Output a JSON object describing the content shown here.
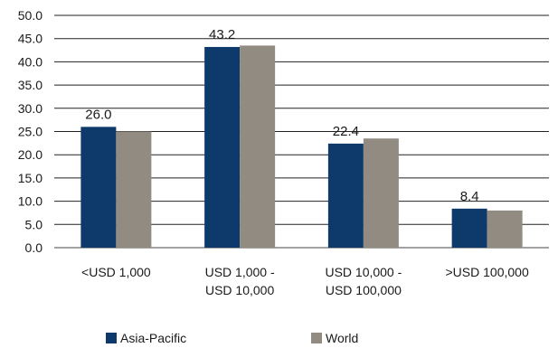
{
  "chart_data": {
    "type": "bar",
    "categories": [
      [
        "<USD 1,000"
      ],
      [
        "USD 1,000 -",
        "USD 10,000"
      ],
      [
        "USD 10,000 -",
        "USD 100,000"
      ],
      [
        ">USD 100,000"
      ]
    ],
    "series": [
      {
        "name": "Asia-Pacific",
        "color": "#0d3a6b",
        "values": [
          26.0,
          43.2,
          22.4,
          8.4
        ]
      },
      {
        "name": "World",
        "color": "#928b82",
        "values": [
          25.0,
          43.5,
          23.5,
          8.0
        ]
      }
    ],
    "data_labels": [
      "26.0",
      "43.2",
      "22.4",
      "8.4"
    ],
    "y_ticks": [
      "0.0",
      "5.0",
      "10.0",
      "15.0",
      "20.0",
      "25.0",
      "30.0",
      "35.0",
      "40.0",
      "45.0",
      "50.0"
    ],
    "ylim": [
      0,
      50
    ],
    "grid": true,
    "legend_position": "bottom"
  }
}
